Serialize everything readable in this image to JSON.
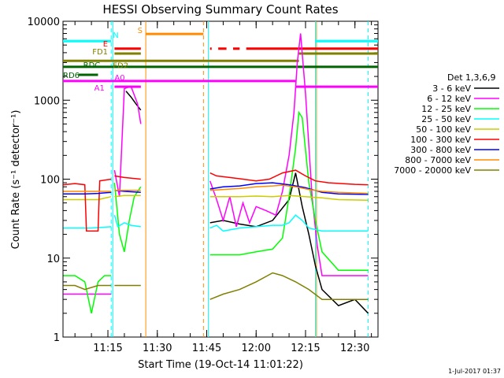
{
  "chart_data": {
    "type": "line",
    "title": "HESSI Observing Summary Count Rates",
    "xlabel": "Start Time (19-Oct-14 11:01:22)",
    "ylabel": "Count Rate (s⁻¹ detector⁻¹)",
    "y_scale": "log",
    "ylim": [
      1,
      10000
    ],
    "xlim": [
      "11:01:22",
      "12:37:00"
    ],
    "x_ticks": [
      "11:15",
      "11:30",
      "11:45",
      "12:00",
      "12:15",
      "12:30"
    ],
    "y_ticks": [
      "1",
      "10",
      "100",
      "1000",
      "10000"
    ],
    "legend_title": "Det 1,3,6,9",
    "timestamp": "1-Jul-2017 01:37",
    "series": [
      {
        "name": "3 - 6 keV",
        "color": "#000000",
        "segments": [
          [
            [
              "11:20:30",
              1300
            ],
            [
              "11:22:00",
              1100
            ],
            [
              "11:23:30",
              900
            ],
            [
              "11:25:00",
              750
            ]
          ],
          [
            [
              "11:46:00",
              28
            ],
            [
              "11:50:00",
              30
            ],
            [
              "11:55:00",
              27
            ],
            [
              "12:00:00",
              25
            ],
            [
              "12:05:00",
              30
            ],
            [
              "12:10:00",
              55
            ],
            [
              "12:12:00",
              120
            ],
            [
              "12:14:00",
              45
            ],
            [
              "12:16:00",
              20
            ],
            [
              "12:18:00",
              8
            ],
            [
              "12:20:00",
              4
            ],
            [
              "12:25:00",
              2.5
            ],
            [
              "12:30:00",
              3
            ],
            [
              "12:34:00",
              2
            ]
          ]
        ]
      },
      {
        "name": "6 - 12 keV",
        "color": "#ff00ff",
        "segments": [
          [
            [
              "11:01:30",
              3.5
            ],
            [
              "11:08:00",
              3.5
            ],
            [
              "11:12:00",
              3.5
            ],
            [
              "11:16:00",
              3.5
            ]
          ],
          [
            [
              "11:17:00",
              130
            ],
            [
              "11:18:30",
              60
            ],
            [
              "11:20:00",
              1400
            ],
            [
              "11:22:00",
              1500
            ],
            [
              "11:24:00",
              900
            ],
            [
              "11:25:00",
              500
            ]
          ],
          [
            [
              "11:46:00",
              95
            ],
            [
              "11:48:00",
              55
            ],
            [
              "11:50:00",
              30
            ],
            [
              "11:52:00",
              60
            ],
            [
              "11:54:00",
              25
            ],
            [
              "11:56:00",
              50
            ],
            [
              "11:58:00",
              28
            ],
            [
              "12:00:00",
              45
            ],
            [
              "12:03:00",
              40
            ],
            [
              "12:06:00",
              35
            ],
            [
              "12:08:00",
              70
            ],
            [
              "12:10:00",
              200
            ],
            [
              "12:11:30",
              700
            ],
            [
              "12:12:30",
              3000
            ],
            [
              "12:13:30",
              7000
            ],
            [
              "12:15:00",
              1200
            ],
            [
              "12:17:00",
              60
            ],
            [
              "12:18:30",
              15
            ],
            [
              "12:20:00",
              6
            ],
            [
              "12:25:00",
              6
            ],
            [
              "12:30:00",
              6
            ],
            [
              "12:34:00",
              6
            ]
          ]
        ]
      },
      {
        "name": "12 - 25 keV",
        "color": "#00ff00",
        "segments": [
          [
            [
              "11:01:30",
              6
            ],
            [
              "11:05:00",
              6
            ],
            [
              "11:08:00",
              5
            ],
            [
              "11:10:00",
              2
            ],
            [
              "11:12:00",
              5
            ],
            [
              "11:14:00",
              6
            ],
            [
              "11:16:00",
              6
            ]
          ],
          [
            [
              "11:17:00",
              90
            ],
            [
              "11:18:30",
              20
            ],
            [
              "11:20:00",
              12
            ],
            [
              "11:21:30",
              30
            ],
            [
              "11:23:00",
              60
            ],
            [
              "11:25:00",
              80
            ]
          ],
          [
            [
              "11:46:00",
              11
            ],
            [
              "11:50:00",
              11
            ],
            [
              "11:55:00",
              11
            ],
            [
              "12:00:00",
              12
            ],
            [
              "12:05:00",
              13
            ],
            [
              "12:08:00",
              18
            ],
            [
              "12:10:00",
              60
            ],
            [
              "12:12:00",
              250
            ],
            [
              "12:13:00",
              700
            ],
            [
              "12:14:00",
              600
            ],
            [
              "12:16:00",
              90
            ],
            [
              "12:18:00",
              30
            ],
            [
              "12:20:00",
              12
            ],
            [
              "12:25:00",
              7
            ],
            [
              "12:30:00",
              7
            ],
            [
              "12:34:00",
              7
            ]
          ]
        ]
      },
      {
        "name": "25 - 50 keV",
        "color": "#00ffff",
        "segments": [
          [
            [
              "11:01:30",
              24
            ],
            [
              "11:05:00",
              24
            ],
            [
              "11:10:00",
              24
            ],
            [
              "11:16:00",
              25
            ]
          ],
          [
            [
              "11:17:00",
              35
            ],
            [
              "11:18:00",
              25
            ],
            [
              "11:20:00",
              28
            ],
            [
              "11:22:00",
              26
            ],
            [
              "11:25:00",
              25
            ]
          ],
          [
            [
              "11:46:00",
              24
            ],
            [
              "11:48:00",
              26
            ],
            [
              "11:50:00",
              22
            ],
            [
              "11:55:00",
              24
            ],
            [
              "12:00:00",
              25
            ],
            [
              "12:05:00",
              26
            ],
            [
              "12:08:00",
              26
            ],
            [
              "12:10:00",
              28
            ],
            [
              "12:12:00",
              35
            ],
            [
              "12:14:00",
              30
            ],
            [
              "12:16:00",
              24
            ],
            [
              "12:20:00",
              22
            ],
            [
              "12:25:00",
              22
            ],
            [
              "12:34:00",
              22
            ]
          ]
        ]
      },
      {
        "name": "50 - 100 keV",
        "color": "#cccc00",
        "segments": [
          [
            [
              "11:01:30",
              55
            ],
            [
              "11:08:00",
              55
            ],
            [
              "11:12:00",
              55
            ],
            [
              "11:16:00",
              60
            ]
          ],
          [
            [
              "11:17:00",
              60
            ],
            [
              "11:20:00",
              62
            ],
            [
              "11:25:00",
              62
            ]
          ],
          [
            [
              "11:46:00",
              60
            ],
            [
              "11:50:00",
              60
            ],
            [
              "11:55:00",
              60
            ],
            [
              "12:00:00",
              61
            ],
            [
              "12:05:00",
              60
            ],
            [
              "12:10:00",
              62
            ],
            [
              "12:15:00",
              60
            ],
            [
              "12:20:00",
              58
            ],
            [
              "12:25:00",
              55
            ],
            [
              "12:34:00",
              54
            ]
          ]
        ]
      },
      {
        "name": "100 - 300 keV",
        "color": "#ff0000",
        "segments": [
          [
            [
              "11:01:30",
              85
            ],
            [
              "11:05:00",
              88
            ],
            [
              "11:08:00",
              85
            ],
            [
              "11:08:30",
              22
            ],
            [
              "11:12:00",
              22
            ],
            [
              "11:12:30",
              95
            ],
            [
              "11:16:00",
              100
            ]
          ],
          [
            [
              "11:17:00",
              110
            ],
            [
              "11:20:00",
              105
            ],
            [
              "11:25:00",
              100
            ]
          ],
          [
            [
              "11:46:00",
              120
            ],
            [
              "11:48:00",
              110
            ],
            [
              "11:52:00",
              105
            ],
            [
              "11:56:00",
              100
            ],
            [
              "12:00:00",
              95
            ],
            [
              "12:04:00",
              100
            ],
            [
              "12:08:00",
              120
            ],
            [
              "12:12:00",
              130
            ],
            [
              "12:15:00",
              110
            ],
            [
              "12:18:00",
              95
            ],
            [
              "12:22:00",
              90
            ],
            [
              "12:26:00",
              88
            ],
            [
              "12:30:00",
              86
            ],
            [
              "12:34:00",
              85
            ]
          ]
        ]
      },
      {
        "name": "300 - 800 keV",
        "color": "#0000ff",
        "segments": [
          [
            [
              "11:01:30",
              65
            ],
            [
              "11:08:00",
              65
            ],
            [
              "11:12:00",
              66
            ],
            [
              "11:16:00",
              68
            ]
          ],
          [
            [
              "11:17:00",
              72
            ],
            [
              "11:20:00",
              70
            ],
            [
              "11:25:00",
              68
            ]
          ],
          [
            [
              "11:46:00",
              75
            ],
            [
              "11:50:00",
              80
            ],
            [
              "11:55:00",
              82
            ],
            [
              "12:00:00",
              88
            ],
            [
              "12:05:00",
              90
            ],
            [
              "12:10:00",
              85
            ],
            [
              "12:15:00",
              78
            ],
            [
              "12:20:00",
              68
            ],
            [
              "12:25:00",
              65
            ],
            [
              "12:34:00",
              64
            ]
          ]
        ]
      },
      {
        "name": "800 - 7000 keV",
        "color": "#ff8c00",
        "segments": [
          [
            [
              "11:01:30",
              70
            ],
            [
              "11:08:00",
              70
            ],
            [
              "11:16:00",
              70
            ]
          ],
          [
            [
              "11:17:00",
              72
            ],
            [
              "11:20:00",
              72
            ],
            [
              "11:25:00",
              72
            ]
          ],
          [
            [
              "11:46:00",
              72
            ],
            [
              "11:50:00",
              74
            ],
            [
              "11:55:00",
              76
            ],
            [
              "12:00:00",
              80
            ],
            [
              "12:05:00",
              82
            ],
            [
              "12:08:00",
              84
            ],
            [
              "12:12:00",
              80
            ],
            [
              "12:16:00",
              74
            ],
            [
              "12:20:00",
              70
            ],
            [
              "12:25:00",
              68
            ],
            [
              "12:34:00",
              66
            ]
          ]
        ]
      },
      {
        "name": "7000 - 20000 keV",
        "color": "#808000",
        "segments": [
          [
            [
              "11:01:30",
              4.5
            ],
            [
              "11:05:00",
              4.5
            ],
            [
              "11:08:00",
              4
            ],
            [
              "11:12:00",
              4.5
            ],
            [
              "11:16:00",
              4.5
            ]
          ],
          [
            [
              "11:17:00",
              4.5
            ],
            [
              "11:20:00",
              4.5
            ],
            [
              "11:25:00",
              4.5
            ]
          ],
          [
            [
              "11:46:00",
              3
            ],
            [
              "11:50:00",
              3.5
            ],
            [
              "11:55:00",
              4
            ],
            [
              "12:00:00",
              5
            ],
            [
              "12:05:00",
              6.5
            ],
            [
              "12:08:00",
              6
            ],
            [
              "12:12:00",
              5
            ],
            [
              "12:16:00",
              4
            ],
            [
              "12:20:00",
              3
            ],
            [
              "12:25:00",
              3
            ],
            [
              "12:34:00",
              3
            ]
          ]
        ]
      }
    ],
    "vertical_lines": [
      {
        "time": "11:16:00",
        "color": "#00ffff",
        "style": "dashed"
      },
      {
        "time": "11:16:30",
        "color": "#00ffff",
        "style": "solid"
      },
      {
        "time": "11:26:30",
        "color": "#ff8c00",
        "style": "solid"
      },
      {
        "time": "11:44:00",
        "color": "#ff8c00",
        "style": "dashed"
      },
      {
        "time": "11:45:30",
        "color": "#00ffff",
        "style": "solid"
      },
      {
        "time": "12:18:00",
        "color": "#00ffff",
        "style": "solid"
      },
      {
        "time": "12:18:20",
        "color": "#ff8c00",
        "style": "solid"
      },
      {
        "time": "12:34:00",
        "color": "#00ffff",
        "style": "dashed"
      }
    ],
    "flag_bars": [
      {
        "label": "N",
        "color": "#00ffff",
        "level": 5600,
        "segments": [
          [
            "11:01:22",
            "11:16:00"
          ],
          [
            "12:18:00",
            "12:37:00"
          ]
        ]
      },
      {
        "label": "S",
        "color": "#ff8c00",
        "level": 6900,
        "segments": [
          [
            "11:26:30",
            "11:44:00"
          ]
        ]
      },
      {
        "label": "E",
        "color": "#ff0000",
        "level": 4500,
        "segments": [
          [
            "11:17:00",
            "11:25:00"
          ],
          [
            "11:46:00",
            "11:46:30"
          ],
          [
            "11:48:30",
            "11:51:00"
          ],
          [
            "11:53:00",
            "11:55:00"
          ],
          [
            "11:57:00",
            "12:37:00"
          ]
        ]
      },
      {
        "label": "FD1",
        "color": "#808000",
        "level": 3900,
        "segments": [
          [
            "11:17:00",
            "11:25:00"
          ],
          [
            "12:13:00",
            "12:37:00"
          ]
        ]
      },
      {
        "label": "FD2",
        "color": "#808000",
        "level": 3150,
        "segments": [
          [
            "11:01:22",
            "12:13:00"
          ]
        ]
      },
      {
        "label": "RDC",
        "color": "#006400",
        "level": 2650,
        "segments": [
          [
            "11:01:22",
            "12:37:00"
          ]
        ]
      },
      {
        "label": "RD6",
        "color": "#006400",
        "level": 2100,
        "segments": [
          [
            "11:06:00",
            "11:12:00"
          ]
        ]
      },
      {
        "label": "A1",
        "color": "#ff00ff",
        "level": 1480,
        "segments": [
          [
            "11:17:00",
            "11:25:00"
          ],
          [
            "12:12:00",
            "12:37:00"
          ]
        ]
      },
      {
        "label": "A0",
        "color": "#ff00ff",
        "level": 1750,
        "segments": [
          [
            "11:01:22",
            "12:12:00"
          ]
        ]
      }
    ]
  }
}
